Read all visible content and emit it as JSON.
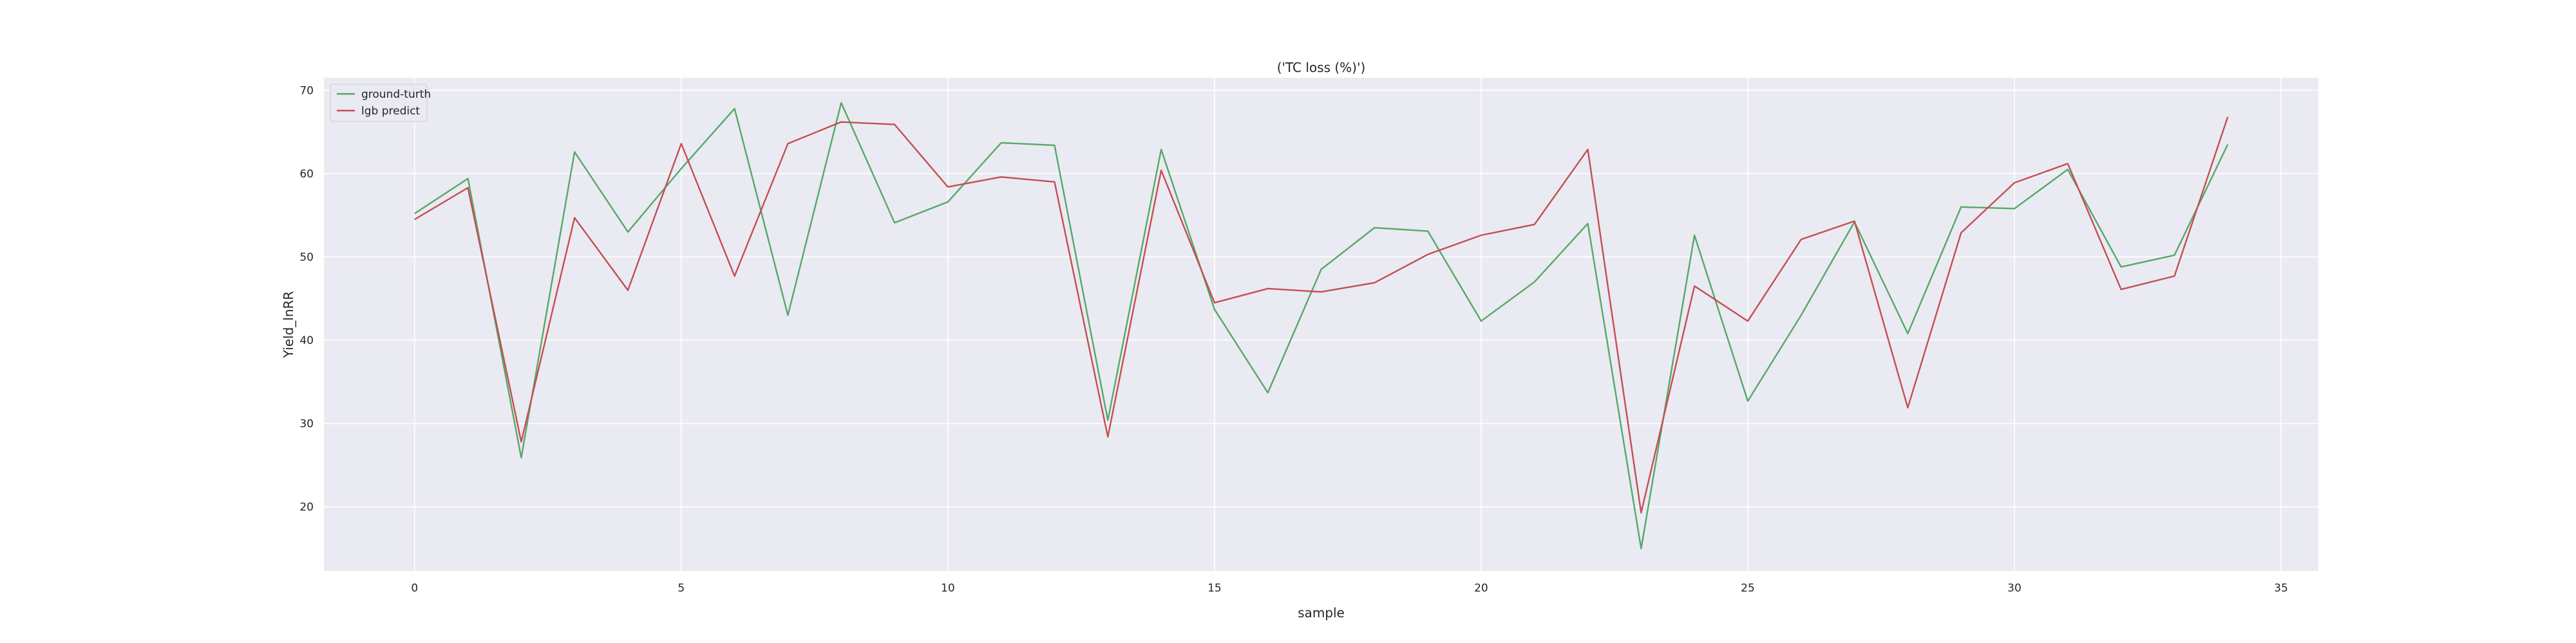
{
  "chart_data": {
    "type": "line",
    "title": "('TC loss (%)')",
    "xlabel": "sample",
    "ylabel": "Yield_lnRR",
    "xlim": [
      -1.7,
      35.7
    ],
    "ylim": [
      12.3,
      71.5
    ],
    "x_ticks": [
      0,
      5,
      10,
      15,
      20,
      25,
      30,
      35
    ],
    "y_ticks": [
      20,
      30,
      40,
      50,
      60,
      70
    ],
    "x_tick_labels": [
      "0",
      "5",
      "10",
      "15",
      "20",
      "25",
      "30",
      "35"
    ],
    "y_tick_labels": [
      "20",
      "30",
      "40",
      "50",
      "60",
      "70"
    ],
    "grid": true,
    "legend_position": "top-left",
    "x": [
      0,
      1,
      2,
      3,
      4,
      5,
      6,
      7,
      8,
      9,
      10,
      11,
      12,
      13,
      14,
      15,
      16,
      17,
      18,
      19,
      20,
      21,
      22,
      23,
      24,
      25,
      26,
      27,
      28,
      29,
      30,
      31,
      32,
      33,
      34
    ],
    "series": [
      {
        "name": "ground-turth",
        "color": "#55a868",
        "values": [
          55.2,
          59.4,
          25.9,
          62.6,
          53.0,
          60.6,
          67.8,
          43.0,
          68.5,
          54.1,
          56.6,
          63.7,
          63.4,
          30.4,
          62.9,
          43.7,
          33.7,
          48.5,
          53.5,
          53.1,
          42.3,
          47.0,
          54.0,
          15.0,
          52.6,
          32.7,
          43.0,
          54.2,
          40.8,
          56.0,
          55.8,
          60.5,
          48.8,
          50.2,
          63.5
        ]
      },
      {
        "name": "lgb predict",
        "color": "#c44e52",
        "values": [
          54.5,
          58.3,
          27.8,
          54.7,
          46.0,
          63.6,
          47.7,
          63.6,
          66.2,
          65.9,
          58.4,
          59.6,
          59.0,
          28.4,
          60.4,
          44.5,
          46.2,
          45.8,
          46.9,
          50.3,
          52.6,
          53.9,
          62.9,
          19.3,
          46.5,
          42.3,
          52.1,
          54.3,
          31.9,
          52.9,
          58.9,
          61.2,
          46.1,
          47.7,
          66.8
        ]
      }
    ]
  },
  "colors": {
    "plot_background": "#eaeaf2",
    "grid": "#ffffff",
    "figure_background": "#ffffff",
    "text": "#262626"
  }
}
